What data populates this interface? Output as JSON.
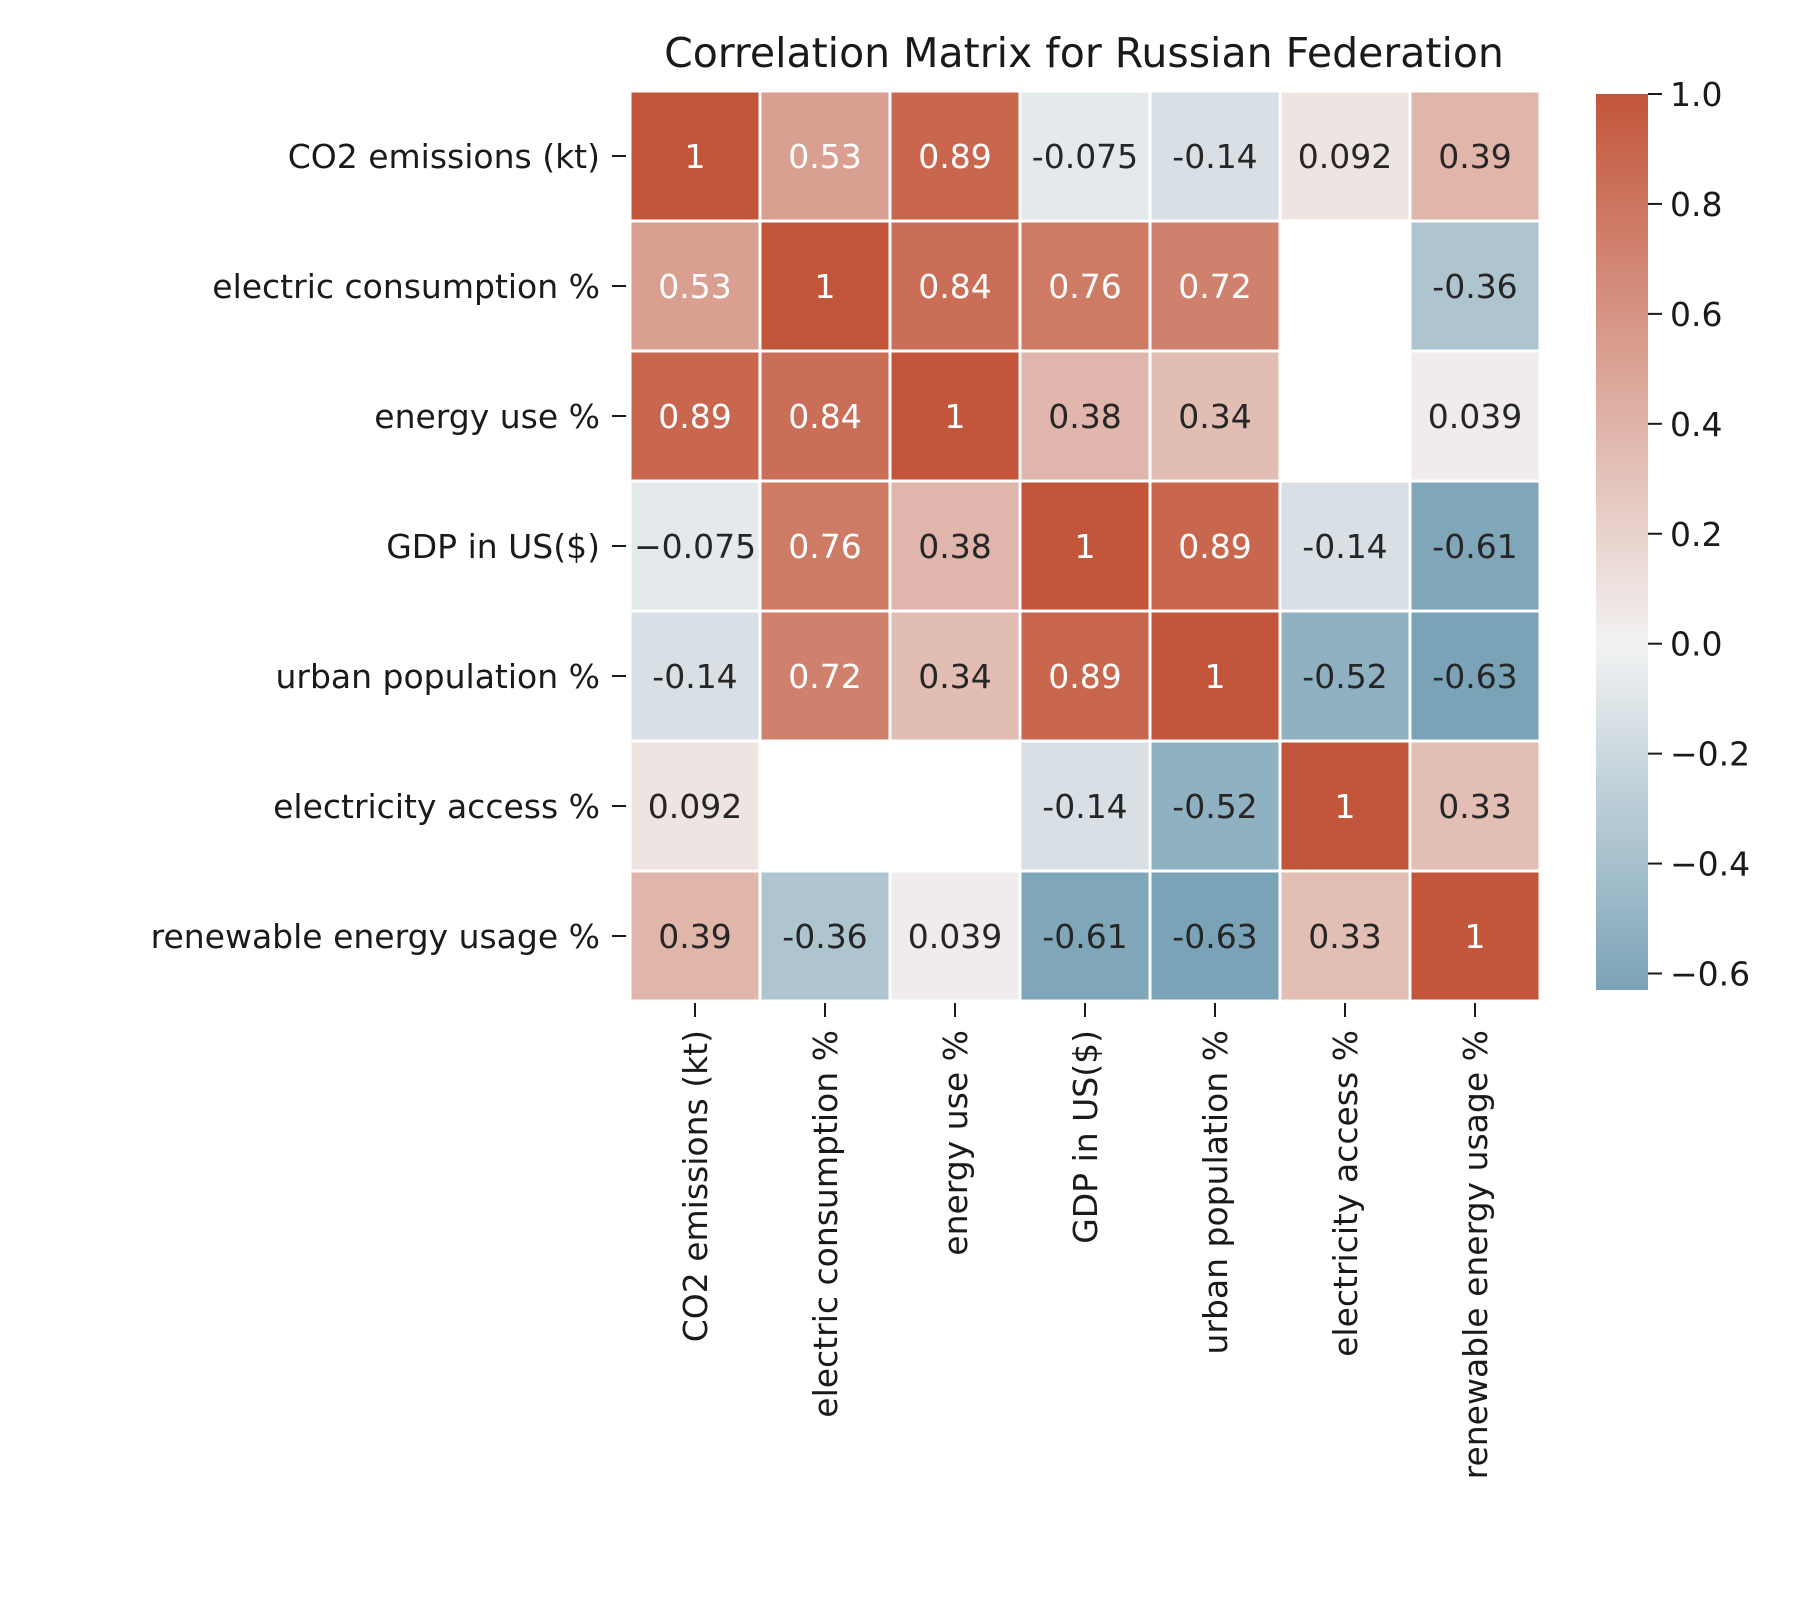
{
  "chart_data": {
    "type": "heatmap",
    "title": "Correlation Matrix for Russian Federation",
    "labels": [
      "CO2 emissions (kt)",
      "electric consumption %",
      "energy use %",
      "GDP in US($)",
      "urban population %",
      "electricity access %",
      "renewable energy usage %"
    ],
    "matrix": [
      [
        1,
        0.53,
        0.89,
        -0.075,
        -0.14,
        0.092,
        0.39
      ],
      [
        0.53,
        1,
        0.84,
        0.76,
        0.72,
        null,
        -0.36
      ],
      [
        0.89,
        0.84,
        1,
        0.38,
        0.34,
        null,
        0.039
      ],
      [
        -0.075,
        0.76,
        0.38,
        1,
        0.89,
        -0.14,
        -0.61
      ],
      [
        -0.14,
        0.72,
        0.34,
        0.89,
        1,
        -0.52,
        -0.63
      ],
      [
        0.092,
        null,
        null,
        -0.14,
        -0.52,
        1,
        0.33
      ],
      [
        0.39,
        -0.36,
        0.039,
        -0.61,
        -0.63,
        0.33,
        1
      ]
    ],
    "display": [
      [
        "1",
        "0.53",
        "0.89",
        "-0.075",
        "-0.14",
        "0.092",
        "0.39"
      ],
      [
        "0.53",
        "1",
        "0.84",
        "0.76",
        "0.72",
        "",
        "-0.36"
      ],
      [
        "0.89",
        "0.84",
        "1",
        "0.38",
        "0.34",
        "",
        "0.039"
      ],
      [
        "−0.075",
        "0.76",
        "0.38",
        "1",
        "0.89",
        "-0.14",
        "-0.61"
      ],
      [
        "-0.14",
        "0.72",
        "0.34",
        "0.89",
        "1",
        "-0.52",
        "-0.63"
      ],
      [
        "0.092",
        "",
        "",
        "-0.14",
        "-0.52",
        "1",
        "0.33"
      ],
      [
        "0.39",
        "-0.36",
        "0.039",
        "-0.61",
        "-0.63",
        "0.33",
        "1"
      ]
    ],
    "colorbar": {
      "range": [
        -0.63,
        1.0
      ],
      "ticks": [
        1.0,
        0.8,
        0.6,
        0.4,
        0.2,
        0.0,
        -0.2,
        -0.4,
        -0.6
      ],
      "tick_labels": [
        "1.0",
        "0.8",
        "0.6",
        "0.4",
        "0.2",
        "0.0",
        "−0.2",
        "−0.4",
        "−0.6"
      ]
    },
    "colors": {
      "positive": "#c3553a",
      "neutral": "#f2f2f2",
      "negative": "#7ba3b7",
      "cell_border": "#ffffff"
    }
  }
}
